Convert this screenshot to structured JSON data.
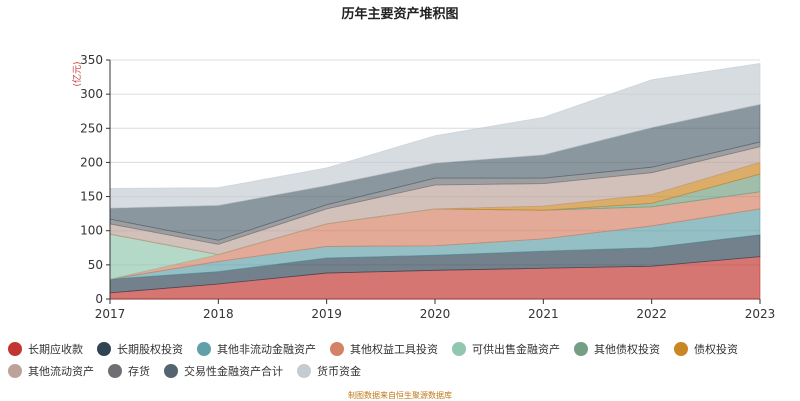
{
  "chart_data": {
    "type": "area",
    "stacked": true,
    "title": "历年主要资产堆积图",
    "ylabel": "(亿元)",
    "xlabel": "",
    "categories": [
      "2017",
      "2018",
      "2019",
      "2020",
      "2021",
      "2022",
      "2023"
    ],
    "ylim": [
      0,
      350
    ],
    "yticks": [
      0,
      50,
      100,
      150,
      200,
      250,
      300,
      350
    ],
    "grid": true,
    "legend_position": "bottom",
    "series": [
      {
        "name": "长期应收款",
        "color": "#c23531",
        "values": [
          9,
          22,
          38,
          42,
          45,
          48,
          62
        ]
      },
      {
        "name": "长期股权投资",
        "color": "#2f4554",
        "values": [
          20,
          18,
          22,
          22,
          25,
          27,
          32
        ]
      },
      {
        "name": "其他非流动金融资产",
        "color": "#61a0a8",
        "values": [
          0,
          15,
          17,
          14,
          18,
          32,
          38
        ]
      },
      {
        "name": "其他权益工具投资",
        "color": "#d48265",
        "values": [
          0,
          10,
          33,
          54,
          42,
          28,
          25
        ]
      },
      {
        "name": "可供出售金融资产",
        "color": "#91c7ae",
        "values": [
          66,
          0,
          0,
          0,
          0,
          0,
          0
        ]
      },
      {
        "name": "其他债权投资",
        "color": "#749f83",
        "values": [
          0,
          0,
          0,
          0,
          0,
          5,
          26
        ]
      },
      {
        "name": "债权投资",
        "color": "#ca8622",
        "values": [
          0,
          0,
          0,
          0,
          6,
          13,
          17
        ]
      },
      {
        "name": "其他流动资产",
        "color": "#bda29a",
        "values": [
          15,
          15,
          22,
          35,
          33,
          32,
          23
        ]
      },
      {
        "name": "存货",
        "color": "#6e7074",
        "values": [
          7,
          6,
          6,
          10,
          8,
          8,
          7
        ]
      },
      {
        "name": "交易性金融资产合计",
        "color": "#546570",
        "values": [
          16,
          51,
          28,
          22,
          34,
          58,
          55
        ]
      },
      {
        "name": "货币资金",
        "color": "#c4ccd3",
        "values": [
          29,
          26,
          26,
          40,
          55,
          70,
          60
        ]
      }
    ]
  },
  "footer": "制图数据来自恒生聚源数据库"
}
